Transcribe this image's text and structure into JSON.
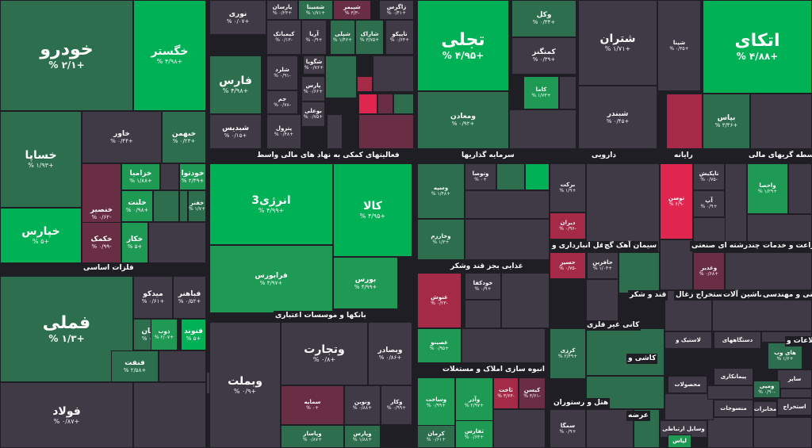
{
  "sectors": {
    "auto": "خودرو و ساخت قطعات",
    "metals": "فلزات اساسی",
    "aux": "فعالیتهای کمکی به نهاد های مالی واسط",
    "banks": "بانکها و موسسات اعتباری",
    "trade": "سرمایه گذاریها",
    "pharma": "دارویی",
    "refinery": "فراورده های نفتی",
    "cement": "سیمان آهک گچ",
    "petro": "رایانه",
    "oil": "واسطه گریهای مالی",
    "food": "غذایی بجز قند وشکر",
    "transport": "حمل و نقل انبارداری و",
    "chem": "چندرشته ای صنعتی",
    "agri": "زراعت و خدمات",
    "build": "انبوه سازی املاک و مستغلات",
    "nonmetal": "کانی غیر فلزی",
    "sugar": "قند و شکر",
    "mine": "استخراج زغال",
    "machine": "ماشین آلات",
    "tech": "فنی و مهندسی",
    "hotel": "هتل و رستوران",
    "info": "اطلاعات و",
    "tile": "کاشی و",
    "other": "عرضه"
  },
  "tiles": [
    {
      "n": "خودرو",
      "c": "+۲/۱ %"
    },
    {
      "n": "خگستر",
      "c": "+۴/۹۸ %"
    },
    {
      "n": "خساپا",
      "c": "+۱/۹۳ %"
    },
    {
      "n": "خاور",
      "c": "+۰/۴۴ %"
    },
    {
      "n": "خبهمن",
      "c": "+۰/۲۳ %"
    },
    {
      "n": "خپارس",
      "c": "+۵ %"
    },
    {
      "n": "خنصیر",
      "c": "-۰/۶۲ %"
    },
    {
      "n": "خزامیا",
      "c": "+۱/۸۸ %"
    },
    {
      "n": "خودتوا",
      "c": "+۲/۴۹ %"
    },
    {
      "n": "خلنت",
      "c": "+۰/۹۸ %"
    },
    {
      "n": "خفنر",
      "c": "+۱/۷ %"
    },
    {
      "n": "خکمک",
      "c": "-۰/۹۹ %"
    },
    {
      "n": "خکار",
      "c": "+۵ %"
    },
    {
      "n": "فملی",
      "c": "+۱/۳ %"
    },
    {
      "n": "فولاد",
      "c": "+۰/۸۷ %"
    },
    {
      "n": "میدکو",
      "c": "+۰/۶۱ %"
    },
    {
      "n": "فباهنر",
      "c": "+۰/۵۲ %"
    },
    {
      "n": "فجهان",
      "c": "+۰/۹۷ %"
    },
    {
      "n": "ذوب",
      "c": "+۲/۰۷ %"
    },
    {
      "n": "فنوند",
      "c": "+۵ %"
    },
    {
      "n": "فنفت",
      "c": "+۲/۵۸ %"
    },
    {
      "n": "نوری",
      "c": "+۰/۰۷ %"
    },
    {
      "n": "پارسان",
      "c": "+۰/۲۳ %"
    },
    {
      "n": "شسینا",
      "c": "+۱/۷۱ %"
    },
    {
      "n": "شپیمر",
      "c": "-۳/۳ %"
    },
    {
      "n": "زاگرس",
      "c": "+۰/۴۱ %"
    },
    {
      "n": "کیمیاتک",
      "c": "-۰/۱۳ %"
    },
    {
      "n": "آریا",
      "c": "+۰/۹ %"
    },
    {
      "n": "شپلی",
      "c": "+۱/۴۶ %"
    },
    {
      "n": "شاراک",
      "c": "+۳/۷۵ %"
    },
    {
      "n": "تاپیکو",
      "c": "+۰/۶۴ %"
    },
    {
      "n": "فارس",
      "c": "+۴/۹۸ %"
    },
    {
      "n": "شگویا",
      "c": "+۰/۷۶ %"
    },
    {
      "n": "شلرد",
      "c": "-۰/۹۱ %"
    },
    {
      "n": "پارس",
      "c": "+۰/۶۶ %"
    },
    {
      "n": "جم",
      "c": "-۰/۷۸ %"
    },
    {
      "n": "بوعلی",
      "c": "+۰/۷۵ %"
    },
    {
      "n": "شبدیس",
      "c": "+۰/۱۵ %"
    },
    {
      "n": "پترول",
      "c": "+۰/۴۸ %"
    },
    {
      "n": "انرژی3",
      "c": "+۴/۹۹ %"
    },
    {
      "n": "کالا",
      "c": "+۴/۹۵ %"
    },
    {
      "n": "فرابورس",
      "c": "+۴/۹۷ %"
    },
    {
      "n": "بورس",
      "c": "+۴/۹۹ %"
    },
    {
      "n": "وبملت",
      "c": "+۰/۹ %"
    },
    {
      "n": "وتجارت",
      "c": "+۰/۸ %"
    },
    {
      "n": "وبصادر",
      "c": "+۰/۸۶ %"
    },
    {
      "n": "سمایه",
      "c": "+۰ %"
    },
    {
      "n": "ونوین",
      "c": "+۰/۸۸ %"
    },
    {
      "n": "وکار",
      "c": "+۰/۹۹ %"
    },
    {
      "n": "وپاسار",
      "c": "+۰/۸۷ %"
    },
    {
      "n": "وپارس",
      "c": "+۱/۸۸ %"
    },
    {
      "n": "تجلی",
      "c": "+۴/۹۵ %"
    },
    {
      "n": "ومعادن",
      "c": "+۰/۹۲ %"
    },
    {
      "n": "وکل",
      "c": "+۰/۳۴ %"
    },
    {
      "n": "کمنگنز",
      "c": "+۰/۳۹ %"
    },
    {
      "n": "کاما",
      "c": "+۱/۷۳ %"
    },
    {
      "n": "شتران",
      "c": "+۱/۷۱ %"
    },
    {
      "n": "شبندر",
      "c": "+۰/۴۵ %"
    },
    {
      "n": "شپنا",
      "c": "+۰/۳۵ %"
    },
    {
      "n": "اتکای",
      "c": "+۴/۸۸ %"
    },
    {
      "n": "بپاس",
      "c": "+۳/۴۶ %"
    },
    {
      "n": "وسپه",
      "c": "+۱/۴۸ %"
    },
    {
      "n": "وتوصا",
      "c": "+۰ %"
    },
    {
      "n": "وخارزم",
      "c": "+۱/۳ %"
    },
    {
      "n": "برکت",
      "c": "+۱/۹ %"
    },
    {
      "n": "دیران",
      "c": "-۰/۹۶ %"
    },
    {
      "n": "توسن",
      "c": "-۶/۹ %"
    },
    {
      "n": "تاپکیش",
      "c": "-۰/۷۵ %"
    },
    {
      "n": "آپ",
      "c": "+۰/۹ %"
    },
    {
      "n": "واحصا",
      "c": "+۱/۲۹ %"
    },
    {
      "n": "حسیر",
      "c": "-۰/۷۵ %"
    },
    {
      "n": "حافرین",
      "c": "+۱/۰۳ %"
    },
    {
      "n": "وغدیر",
      "c": "+۰/۶۸ %"
    },
    {
      "n": "غنوش",
      "c": "-۰/۲۳ %"
    },
    {
      "n": "خودکفا",
      "c": "+۰/۹ %"
    },
    {
      "n": "غصینو",
      "c": "+۰/۹۵ %"
    },
    {
      "n": "کرزی",
      "c": "+۲/۴۹ %"
    },
    {
      "n": "وساخت",
      "c": "+۰/۹۹ %"
    },
    {
      "n": "وآذر",
      "c": "+۲/۹۷ %"
    },
    {
      "n": "ثاخت",
      "c": "-۳/۶۳ %"
    },
    {
      "n": "کیسن",
      "c": "-۳/۶۱ %"
    },
    {
      "n": "ثفارس",
      "c": "+۰/۶۳ %"
    },
    {
      "n": "کرمان",
      "c": "+۰/۶۱ %"
    },
    {
      "n": "سمگا",
      "c": "+۰/۹ %"
    },
    {
      "n": "های وب",
      "c": "+۱/۶ %"
    },
    {
      "n": "ساپر",
      "c": ""
    },
    {
      "n": "ومپی",
      "c": "-۰/۹۰ %"
    },
    {
      "n": "استخراج",
      "c": ""
    },
    {
      "n": "محصولات",
      "c": ""
    },
    {
      "n": "پیمانکاری",
      "c": ""
    },
    {
      "n": "منسوجات",
      "c": ""
    },
    {
      "n": "مخابرات",
      "c": ""
    },
    {
      "n": "لاستیک و",
      "c": ""
    },
    {
      "n": "دستگاههای",
      "c": ""
    },
    {
      "n": "وسایل ارتباطی",
      "c": ""
    },
    {
      "n": "لپاس",
      "c": ""
    }
  ]
}
